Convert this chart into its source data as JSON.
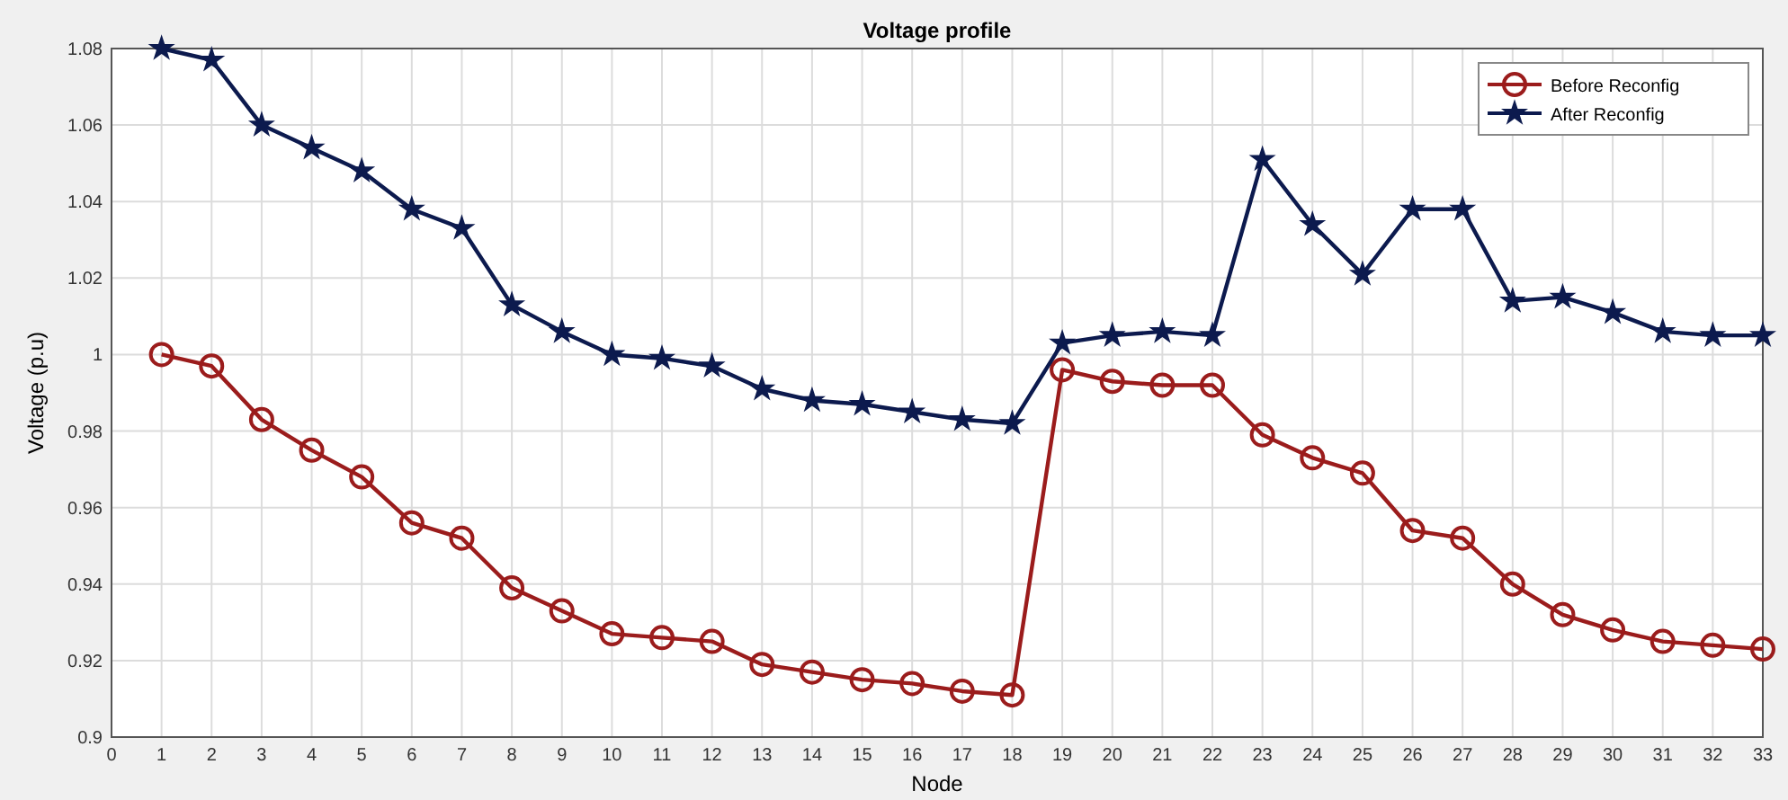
{
  "chart_data": {
    "type": "line",
    "title": "Voltage profile",
    "xlabel": "Node",
    "ylabel": "Voltage (p.u)",
    "x": [
      1,
      2,
      3,
      4,
      5,
      6,
      7,
      8,
      9,
      10,
      11,
      12,
      13,
      14,
      15,
      16,
      17,
      18,
      19,
      20,
      21,
      22,
      23,
      24,
      25,
      26,
      27,
      28,
      29,
      30,
      31,
      32,
      33
    ],
    "series": [
      {
        "name": "Before Reconfig",
        "color": "#9b1c1c",
        "marker": "circle",
        "values": [
          1.0,
          0.997,
          0.983,
          0.975,
          0.968,
          0.956,
          0.952,
          0.939,
          0.933,
          0.927,
          0.926,
          0.925,
          0.919,
          0.917,
          0.915,
          0.914,
          0.912,
          0.911,
          0.996,
          0.993,
          0.992,
          0.992,
          0.979,
          0.973,
          0.969,
          0.954,
          0.952,
          0.94,
          0.932,
          0.928,
          0.925,
          0.924,
          0.923
        ]
      },
      {
        "name": "After Reconfig",
        "color": "#0c1a4e",
        "marker": "star",
        "values": [
          1.08,
          1.077,
          1.06,
          1.054,
          1.048,
          1.038,
          1.033,
          1.013,
          1.006,
          1.0,
          0.999,
          0.997,
          0.991,
          0.988,
          0.987,
          0.985,
          0.983,
          0.982,
          1.003,
          1.005,
          1.006,
          1.005,
          1.051,
          1.034,
          1.021,
          1.038,
          1.038,
          1.014,
          1.015,
          1.011,
          1.006,
          1.005,
          1.005
        ]
      }
    ],
    "xlim": [
      0,
      33
    ],
    "xticks": [
      0,
      1,
      2,
      3,
      4,
      5,
      6,
      7,
      8,
      9,
      10,
      11,
      12,
      13,
      14,
      15,
      16,
      17,
      18,
      19,
      20,
      21,
      22,
      23,
      24,
      25,
      26,
      27,
      28,
      29,
      30,
      31,
      32,
      33
    ],
    "ylim": [
      0.9,
      1.08
    ],
    "yticks": [
      0.9,
      0.92,
      0.94,
      0.96,
      0.98,
      1,
      1.02,
      1.04,
      1.06,
      1.08
    ],
    "grid": true,
    "legend": "top right",
    "line_style": "solid"
  }
}
